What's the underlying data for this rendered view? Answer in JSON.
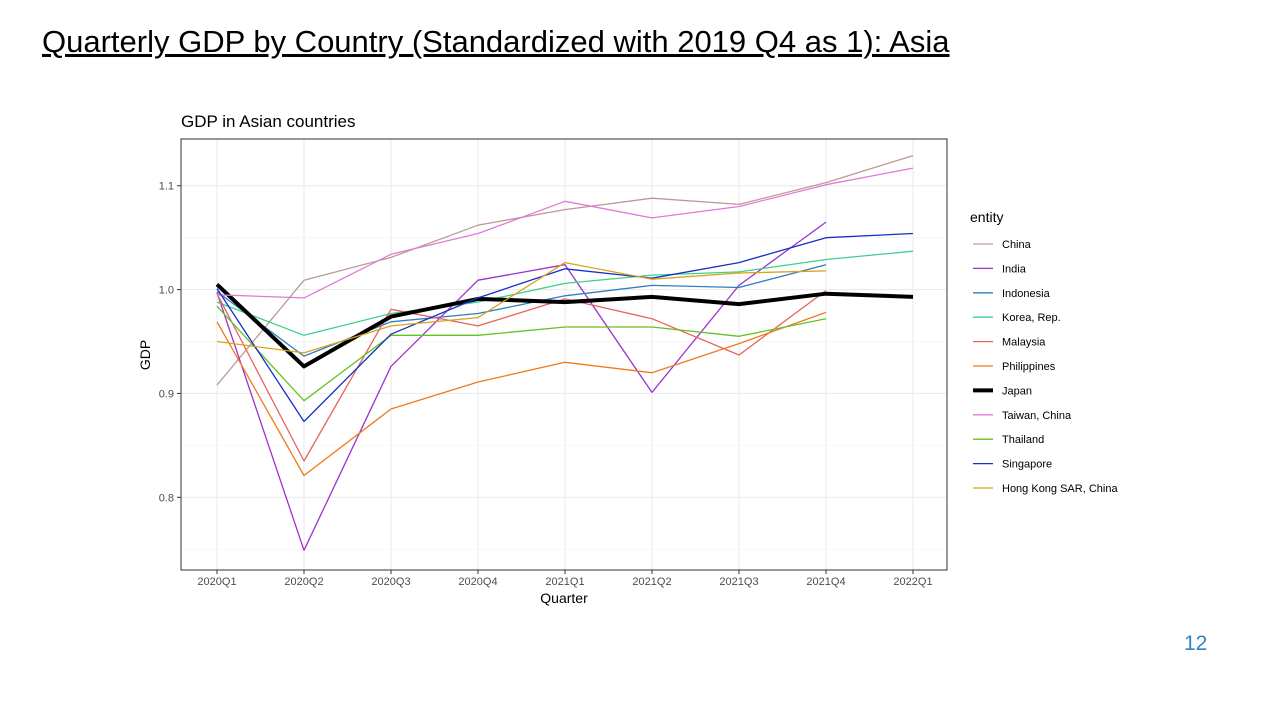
{
  "slide": {
    "title": "Quarterly GDP by Country (Standardized with 2019 Q4 as 1): Asia",
    "page_number": "12"
  },
  "chart_data": {
    "type": "line",
    "title": "GDP in Asian countries",
    "xlabel": "Quarter",
    "ylabel": "GDP",
    "categories": [
      "2020Q1",
      "2020Q2",
      "2020Q3",
      "2020Q4",
      "2021Q1",
      "2021Q2",
      "2021Q3",
      "2021Q4",
      "2022Q1"
    ],
    "yticks": [
      0.8,
      0.9,
      1.0,
      1.1
    ],
    "ytick_labels": [
      "0.8",
      "0.9",
      "1.0",
      "1.1"
    ],
    "ylim": [
      0.73,
      1.145
    ],
    "grid": true,
    "legend_title": "entity",
    "legend_position": "right",
    "series": [
      {
        "name": "China",
        "color": "#bc9a94",
        "width": 1.3,
        "values": [
          0.908,
          1.009,
          1.031,
          1.062,
          1.077,
          1.088,
          1.082,
          1.103,
          1.129
        ]
      },
      {
        "name": "India",
        "color": "#9b32cd",
        "width": 1.3,
        "values": [
          0.997,
          0.749,
          0.926,
          1.009,
          1.024,
          0.901,
          1.004,
          1.065,
          null
        ]
      },
      {
        "name": "Indonesia",
        "color": "#2d7fc1",
        "width": 1.3,
        "values": [
          0.998,
          0.936,
          0.969,
          0.977,
          0.994,
          1.004,
          1.002,
          1.024,
          null
        ]
      },
      {
        "name": "Korea, Rep.",
        "color": "#3ecf8e",
        "width": 1.3,
        "values": [
          0.988,
          0.956,
          0.977,
          0.988,
          1.006,
          1.014,
          1.017,
          1.029,
          1.037
        ]
      },
      {
        "name": "Malaysia",
        "color": "#e8635f",
        "width": 1.3,
        "values": [
          0.996,
          0.835,
          0.981,
          0.965,
          0.991,
          0.972,
          0.937,
          0.999,
          null
        ]
      },
      {
        "name": "Philippines",
        "color": "#ee7b1b",
        "width": 1.3,
        "values": [
          0.969,
          0.821,
          0.885,
          0.911,
          0.93,
          0.92,
          0.948,
          0.978,
          null
        ]
      },
      {
        "name": "Japan",
        "color": "#000000",
        "width": 4,
        "values": [
          1.005,
          0.926,
          0.974,
          0.991,
          0.988,
          0.993,
          0.986,
          0.996,
          0.993
        ]
      },
      {
        "name": "Taiwan, China",
        "color": "#e07ad8",
        "width": 1.3,
        "values": [
          0.995,
          0.992,
          1.034,
          1.054,
          1.085,
          1.069,
          1.08,
          1.101,
          1.117
        ]
      },
      {
        "name": "Thailand",
        "color": "#63c222",
        "width": 1.3,
        "values": [
          0.984,
          0.893,
          0.956,
          0.956,
          0.964,
          0.964,
          0.955,
          0.972,
          null
        ]
      },
      {
        "name": "Singapore",
        "color": "#1430c9",
        "width": 1.3,
        "values": [
          1.001,
          0.873,
          0.957,
          0.992,
          1.02,
          1.011,
          1.026,
          1.05,
          1.054
        ]
      },
      {
        "name": "Hong Kong SAR, China",
        "color": "#d9a31b",
        "width": 1.3,
        "values": [
          0.95,
          0.939,
          0.965,
          0.973,
          1.026,
          1.01,
          1.016,
          1.018,
          null
        ]
      }
    ]
  }
}
